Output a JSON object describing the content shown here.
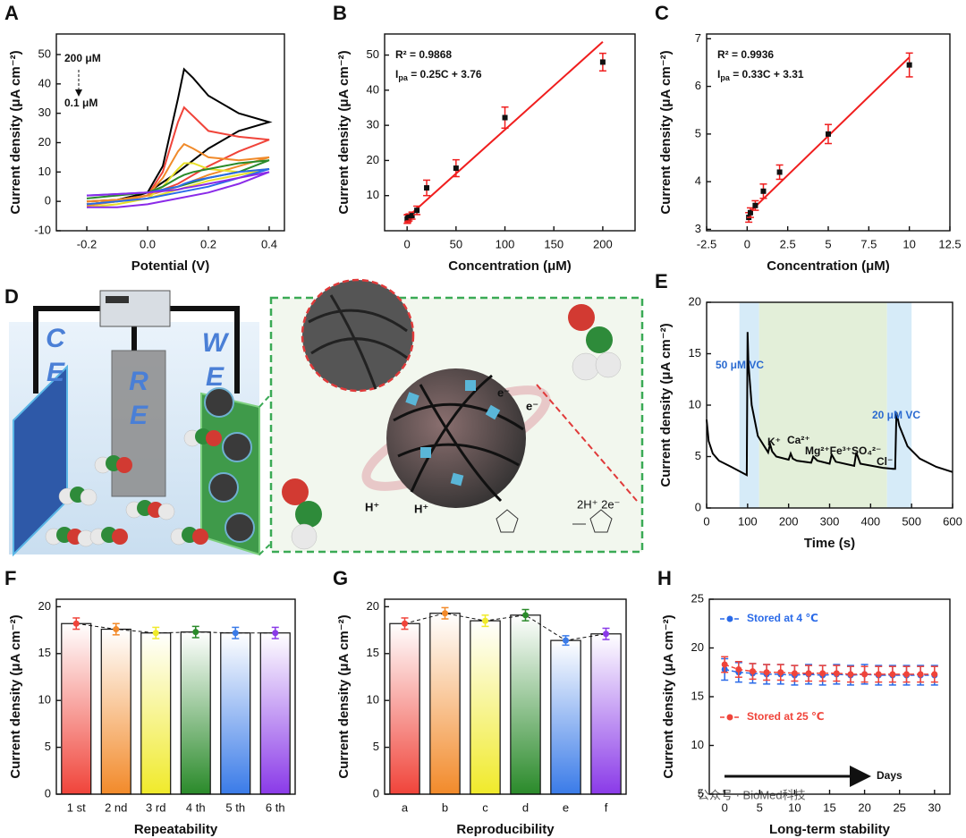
{
  "chart_data": [
    {
      "type": "line",
      "panel_label": "A",
      "x_label": "Potential (V)",
      "y_label": "Current density (μA cm⁻²)",
      "x": [
        -0.2,
        -0.1,
        0,
        0.05,
        0.1,
        0.12,
        0.15,
        0.2,
        0.3,
        0.4,
        0.3,
        0.2,
        0.1,
        0,
        -0.1,
        -0.2
      ],
      "series": [
        {
          "color": "#000000",
          "values": [
            0,
            0.5,
            3,
            12,
            35,
            45,
            42,
            36,
            30,
            27,
            24,
            18,
            10,
            3,
            0,
            -1
          ]
        },
        {
          "color": "#f0443a",
          "values": [
            0,
            0.5,
            2,
            10,
            27,
            32,
            29,
            24,
            22,
            21,
            17,
            12,
            6,
            2,
            0,
            -1
          ]
        },
        {
          "color": "#f08a2a",
          "values": [
            0,
            0.5,
            2,
            8,
            17,
            19.5,
            18,
            15,
            14,
            15,
            12,
            9,
            5,
            2,
            0,
            -1.5
          ]
        },
        {
          "color": "#e8e02a",
          "values": [
            -1,
            0,
            1,
            5,
            11,
            13,
            13,
            11,
            10,
            11,
            9,
            7,
            4,
            1,
            -1,
            -2
          ]
        },
        {
          "color": "#2a8a2a",
          "values": [
            1,
            2,
            3,
            5,
            8,
            9,
            10,
            11,
            13,
            14,
            10,
            8,
            5,
            3,
            2,
            1
          ]
        },
        {
          "color": "#2a6ae8",
          "values": [
            2,
            2.5,
            3,
            4,
            5,
            6,
            7,
            8,
            10,
            11,
            8,
            5,
            3,
            1,
            0,
            -1
          ]
        },
        {
          "color": "#8a2ae8",
          "values": [
            2,
            2.5,
            3,
            3.5,
            4,
            4.5,
            5,
            6,
            8,
            10,
            6,
            3,
            1,
            -1,
            -2,
            -2
          ]
        }
      ],
      "annotations": [
        "200 μM",
        "0.1 μM"
      ],
      "xlim": [
        -0.3,
        0.45
      ],
      "xticks": [
        -0.2,
        {
          "value": 0,
          "label": "0.0"
        },
        0.2,
        0.4
      ],
      "ylim": [
        -10,
        57
      ],
      "yticks": [
        -10,
        0,
        10,
        20,
        30,
        40,
        50
      ]
    },
    {
      "type": "scatter",
      "panel_label": "B",
      "x_label": "Concentration (μM)",
      "y_label": "Current density (μA cm⁻²)",
      "x": [
        0.1,
        0.5,
        1,
        2,
        5,
        10,
        20,
        50,
        100,
        200
      ],
      "values": [
        3.3,
        3.4,
        3.6,
        3.8,
        4.3,
        5.8,
        12.2,
        17.8,
        32.2,
        48
      ],
      "errors": [
        1.2,
        1.2,
        1,
        1,
        1,
        1.2,
        2.2,
        2.4,
        3,
        2.5
      ],
      "fit": {
        "slope": 0.25,
        "intercept": 3.76,
        "color": "#f01e1e"
      },
      "r2_label": "R² = 0.9868",
      "equation": {
        "lhs": "I",
        "sub": "pa",
        "rhs": " = 0.25C + 3.76"
      },
      "xlim": [
        -23,
        233
      ],
      "xticks": [
        0,
        50,
        100,
        150,
        200
      ],
      "ylim": [
        0,
        56
      ],
      "yticks": [
        10,
        20,
        30,
        40,
        50
      ]
    },
    {
      "type": "scatter",
      "panel_label": "C",
      "x_label": "Concentration (μM)",
      "y_label": "Current density (μA cm⁻²)",
      "x": [
        0.1,
        0.2,
        0.5,
        1,
        2,
        5,
        10
      ],
      "values": [
        3.25,
        3.35,
        3.5,
        3.8,
        4.2,
        5.0,
        6.45
      ],
      "errors": [
        0.1,
        0.1,
        0.1,
        0.15,
        0.15,
        0.2,
        0.25
      ],
      "fit": {
        "slope": 0.33,
        "intercept": 3.31,
        "color": "#f01e1e"
      },
      "r2_label": "R² = 0.9936",
      "equation": {
        "lhs": "I",
        "sub": "pa",
        "rhs": " = 0.33C + 3.31"
      },
      "xlim": [
        -2.5,
        12.5
      ],
      "xticks": [
        -2.5,
        0,
        2.5,
        5,
        7.5,
        10,
        12.5
      ],
      "ylim": [
        2.97,
        7.1
      ],
      "yticks": [
        3,
        4,
        5,
        6,
        7
      ]
    },
    {
      "type": "line",
      "panel_label": "E",
      "x_label": "Time (s)",
      "y_label": "Current density (μA cm⁻²)",
      "x": [
        0,
        5,
        15,
        30,
        60,
        98,
        100,
        102,
        110,
        125,
        150,
        155,
        160,
        170,
        200,
        205,
        210,
        220,
        255,
        260,
        270,
        300,
        305,
        315,
        360,
        365,
        375,
        430,
        455,
        460,
        463,
        470,
        490,
        520,
        560,
        600
      ],
      "series": [
        {
          "color": "#000000",
          "values": [
            8.6,
            6.5,
            5.3,
            4.6,
            4.0,
            3.2,
            17.1,
            14,
            10,
            7,
            5.4,
            6.2,
            5.5,
            5.0,
            4.7,
            5.3,
            4.8,
            4.6,
            4.4,
            5.0,
            4.6,
            4.3,
            5.2,
            4.5,
            4.1,
            5.4,
            4.3,
            3.9,
            3.8,
            3.8,
            9.3,
            8,
            6,
            4.8,
            4.0,
            3.5
          ]
        }
      ],
      "regions": [
        {
          "from": 80,
          "to": 128,
          "color": "#d6ebf8"
        },
        {
          "from": 128,
          "to": 440,
          "color": "#e3efd9"
        },
        {
          "from": 440,
          "to": 500,
          "color": "#d6ebf8"
        }
      ],
      "annotations": [
        "50 μM VC",
        "K⁺",
        "Ca²⁺",
        "Mg²⁺Fe³⁺SO₄²⁻",
        "Cl⁻",
        "20 μM VC"
      ],
      "xlim": [
        0,
        600
      ],
      "xticks": [
        0,
        100,
        200,
        300,
        400,
        500,
        600
      ],
      "ylim": [
        0,
        20
      ],
      "yticks": [
        0,
        5,
        10,
        15,
        20
      ]
    },
    {
      "type": "bar",
      "panel_label": "F",
      "x_label": "Repeatability",
      "y_label": "Current density (μA cm⁻²)",
      "categories": [
        "1 st",
        "2 nd",
        "3 rd",
        "4 th",
        "5 th",
        "6 th"
      ],
      "values": [
        18.2,
        17.6,
        17.2,
        17.3,
        17.2,
        17.2
      ],
      "errors": [
        0.6,
        0.6,
        0.6,
        0.6,
        0.6,
        0.6
      ],
      "colors": [
        "#f0443a",
        "#f28a2a",
        "#f0ea2a",
        "#2a8a2a",
        "#3a7be8",
        "#8a3ae8"
      ],
      "ylim": [
        0,
        20.8
      ],
      "yticks": [
        0,
        5,
        10,
        15,
        20
      ]
    },
    {
      "type": "bar",
      "panel_label": "G",
      "x_label": "Reproducibility",
      "y_label": "Current density (μA cm⁻²)",
      "categories": [
        "a",
        "b",
        "c",
        "d",
        "e",
        "f"
      ],
      "values": [
        18.2,
        19.3,
        18.5,
        19.1,
        16.4,
        17.1
      ],
      "errors": [
        0.6,
        0.6,
        0.6,
        0.6,
        0.5,
        0.6
      ],
      "colors": [
        "#f0443a",
        "#f28a2a",
        "#f0ea2a",
        "#2a8a2a",
        "#3a7be8",
        "#8a3ae8"
      ],
      "ylim": [
        0,
        20.8
      ],
      "yticks": [
        0,
        5,
        10,
        15,
        20
      ]
    },
    {
      "type": "line",
      "panel_label": "H",
      "x_label": "Long-term stability",
      "y_label": "Current density (μA cm⁻²)",
      "dashed": true,
      "x": [
        0,
        2,
        4,
        6,
        8,
        10,
        12,
        14,
        16,
        18,
        20,
        22,
        24,
        26,
        28,
        30
      ],
      "series": [
        {
          "name": "Stored at 4 ℃",
          "color": "#2a6ae8",
          "values": [
            17.8,
            17.5,
            17.4,
            17.3,
            17.3,
            17.2,
            17.3,
            17.2,
            17.3,
            17.2,
            17.3,
            17.2,
            17.2,
            17.2,
            17.2,
            17.2
          ],
          "errors": [
            1.1,
            1,
            1,
            1,
            1,
            1,
            1,
            1,
            1,
            1,
            1,
            1,
            1,
            1,
            1,
            1
          ]
        },
        {
          "name": "Stored at 25 ℃",
          "color": "#f0443a",
          "values": [
            18.3,
            17.8,
            17.6,
            17.5,
            17.5,
            17.4,
            17.4,
            17.4,
            17.4,
            17.3,
            17.3,
            17.3,
            17.3,
            17.3,
            17.3,
            17.3
          ],
          "errors": [
            0.8,
            0.8,
            0.8,
            0.8,
            0.8,
            0.8,
            0.8,
            0.8,
            0.8,
            0.8,
            0.8,
            0.8,
            0.8,
            0.8,
            0.8,
            0.8
          ]
        }
      ],
      "annotations": [
        "Days"
      ],
      "xlim": [
        -2.2,
        32.2
      ],
      "xticks": [
        0,
        5,
        10,
        15,
        20,
        25,
        30
      ],
      "ylim": [
        5,
        25
      ],
      "yticks": [
        5,
        10,
        15,
        20,
        25
      ]
    }
  ],
  "panel_d": {
    "panel_label": "D",
    "ce": [
      "C",
      "E"
    ],
    "re": [
      "R",
      "E"
    ],
    "we": [
      "W",
      "E"
    ],
    "electrons": [
      "e⁻",
      "e⁻"
    ],
    "protons": [
      "H⁺",
      "H⁺"
    ],
    "reaction": "2H⁺ 2e⁻"
  },
  "watermark": "公众号 · BioMed科技"
}
